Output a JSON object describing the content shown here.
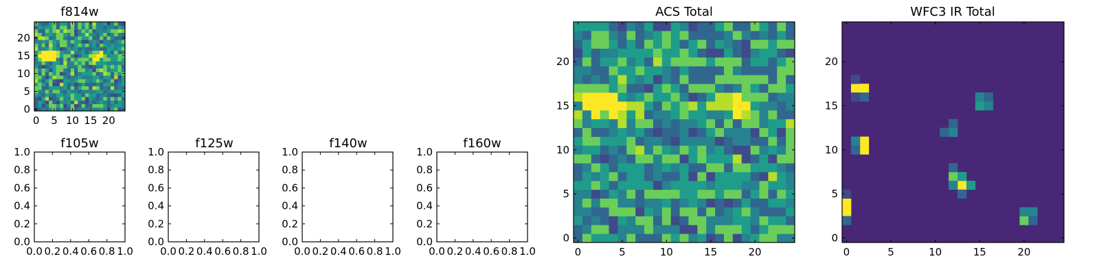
{
  "panels": {
    "f814w": {
      "title": "f814w",
      "xticks": [
        0,
        5,
        10,
        15,
        20
      ],
      "yticks": [
        0,
        5,
        10,
        15,
        20
      ]
    },
    "f105w": {
      "title": "f105w"
    },
    "f125w": {
      "title": "f125w"
    },
    "f140w": {
      "title": "f140w"
    },
    "f160w": {
      "title": "f160w"
    },
    "acs": {
      "title": "ACS Total",
      "xticks": [
        0,
        5,
        10,
        15,
        20
      ],
      "yticks": [
        0,
        5,
        10,
        15,
        20
      ]
    },
    "wfc3": {
      "title": "WFC3 IR Total",
      "xticks": [
        0,
        5,
        10,
        15,
        20
      ],
      "yticks": [
        0,
        5,
        10,
        15,
        20
      ]
    }
  },
  "empty_ticks": [
    "0.0",
    "0.2",
    "0.4",
    "0.6",
    "0.8",
    "1.0"
  ],
  "colormap": [
    "#440154",
    "#482777",
    "#3f4a8a",
    "#31678e",
    "#26838f",
    "#1f9d8a",
    "#6cce5a",
    "#b6de2b",
    "#fee825"
  ],
  "chart_data": [
    {
      "type": "heatmap",
      "title": "f814w",
      "grid_size": [
        25,
        25
      ],
      "xlim": [
        -0.5,
        24.5
      ],
      "ylim": [
        -0.5,
        24.5
      ],
      "description_values": "noisy image with two bright sources near (3,15) and (17,15)",
      "sources": [
        {
          "x": 3,
          "y": 15,
          "peak": 1.0
        },
        {
          "x": 17,
          "y": 15,
          "peak": 0.85
        }
      ],
      "background": 0.55
    },
    {
      "type": "empty",
      "title": "f105w",
      "xlim": [
        0,
        1
      ],
      "ylim": [
        0,
        1
      ]
    },
    {
      "type": "empty",
      "title": "f125w",
      "xlim": [
        0,
        1
      ],
      "ylim": [
        0,
        1
      ]
    },
    {
      "type": "empty",
      "title": "f140w",
      "xlim": [
        0,
        1
      ],
      "ylim": [
        0,
        1
      ]
    },
    {
      "type": "empty",
      "title": "f160w",
      "xlim": [
        0,
        1
      ],
      "ylim": [
        0,
        1
      ]
    },
    {
      "type": "heatmap",
      "title": "ACS Total",
      "grid_size": [
        25,
        25
      ],
      "xlim": [
        -0.5,
        24.5
      ],
      "ylim": [
        -0.5,
        24.5
      ],
      "sources": [
        {
          "x": 3,
          "y": 15,
          "peak": 1.0
        },
        {
          "x": 18,
          "y": 15,
          "peak": 0.9
        }
      ],
      "background": 0.55
    },
    {
      "type": "heatmap",
      "title": "WFC3 IR Total",
      "grid_size": [
        25,
        25
      ],
      "xlim": [
        -0.5,
        24.5
      ],
      "ylim": [
        -0.5,
        24.5
      ],
      "background": 0.08,
      "hot_pixels": [
        {
          "x": 2,
          "y": 17,
          "v": 1.0
        },
        {
          "x": 1,
          "y": 17,
          "v": 1.0
        },
        {
          "x": 2,
          "y": 11,
          "v": 1.0
        },
        {
          "x": 2,
          "y": 10,
          "v": 1.0
        },
        {
          "x": 1,
          "y": 11,
          "v": 0.45
        },
        {
          "x": 1,
          "y": 10,
          "v": 0.4
        },
        {
          "x": 0,
          "y": 4,
          "v": 1.0
        },
        {
          "x": 0,
          "y": 3,
          "v": 1.0
        },
        {
          "x": 0,
          "y": 2,
          "v": 0.35
        },
        {
          "x": 0,
          "y": 5,
          "v": 0.3
        },
        {
          "x": 13,
          "y": 6,
          "v": 1.0
        },
        {
          "x": 12,
          "y": 7,
          "v": 0.8
        },
        {
          "x": 13,
          "y": 7,
          "v": 0.6
        },
        {
          "x": 14,
          "y": 6,
          "v": 0.65
        },
        {
          "x": 12,
          "y": 6,
          "v": 0.45
        },
        {
          "x": 12,
          "y": 8,
          "v": 0.35
        },
        {
          "x": 13,
          "y": 5,
          "v": 0.35
        },
        {
          "x": 15,
          "y": 15,
          "v": 0.65
        },
        {
          "x": 16,
          "y": 15,
          "v": 0.5
        },
        {
          "x": 15,
          "y": 16,
          "v": 0.45
        },
        {
          "x": 16,
          "y": 16,
          "v": 0.4
        },
        {
          "x": 12,
          "y": 12,
          "v": 0.55
        },
        {
          "x": 11,
          "y": 12,
          "v": 0.35
        },
        {
          "x": 12,
          "y": 13,
          "v": 0.35
        },
        {
          "x": 20,
          "y": 2,
          "v": 0.7
        },
        {
          "x": 20,
          "y": 3,
          "v": 0.5
        },
        {
          "x": 21,
          "y": 3,
          "v": 0.5
        },
        {
          "x": 21,
          "y": 2,
          "v": 0.4
        },
        {
          "x": 2,
          "y": 16,
          "v": 0.35
        },
        {
          "x": 1,
          "y": 16,
          "v": 0.3
        },
        {
          "x": 1,
          "y": 18,
          "v": 0.3
        }
      ]
    }
  ]
}
